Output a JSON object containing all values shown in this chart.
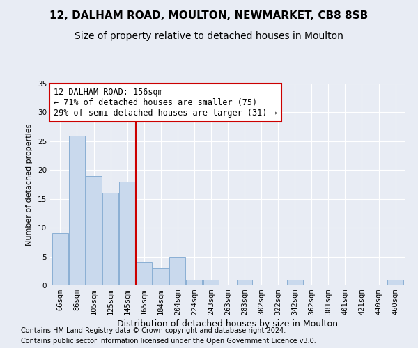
{
  "title1": "12, DALHAM ROAD, MOULTON, NEWMARKET, CB8 8SB",
  "title2": "Size of property relative to detached houses in Moulton",
  "xlabel": "Distribution of detached houses by size in Moulton",
  "ylabel": "Number of detached properties",
  "categories": [
    "66sqm",
    "86sqm",
    "105sqm",
    "125sqm",
    "145sqm",
    "165sqm",
    "184sqm",
    "204sqm",
    "224sqm",
    "243sqm",
    "263sqm",
    "283sqm",
    "302sqm",
    "322sqm",
    "342sqm",
    "362sqm",
    "381sqm",
    "401sqm",
    "421sqm",
    "440sqm",
    "460sqm"
  ],
  "values": [
    9,
    26,
    19,
    16,
    18,
    4,
    3,
    5,
    1,
    1,
    0,
    1,
    0,
    0,
    1,
    0,
    0,
    0,
    0,
    0,
    1
  ],
  "bar_color": "#c9d9ed",
  "bar_edge_color": "#8aafd4",
  "red_line_x": 4.5,
  "annotation_text": "12 DALHAM ROAD: 156sqm\n← 71% of detached houses are smaller (75)\n29% of semi-detached houses are larger (31) →",
  "annotation_box_color": "#ffffff",
  "annotation_box_edge": "#cc0000",
  "red_line_color": "#cc0000",
  "ylim": [
    0,
    35
  ],
  "yticks": [
    0,
    5,
    10,
    15,
    20,
    25,
    30,
    35
  ],
  "background_color": "#e8ecf4",
  "plot_background": "#e8ecf4",
  "footer1": "Contains HM Land Registry data © Crown copyright and database right 2024.",
  "footer2": "Contains public sector information licensed under the Open Government Licence v3.0.",
  "title_fontsize": 11,
  "subtitle_fontsize": 10,
  "xlabel_fontsize": 9,
  "ylabel_fontsize": 8,
  "tick_fontsize": 7.5,
  "annotation_fontsize": 8.5,
  "footer_fontsize": 7
}
